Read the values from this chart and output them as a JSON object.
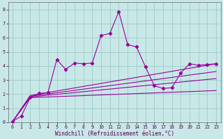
{
  "xlabel": "Windchill (Refroidissement éolien,°C)",
  "bg_color": "#c8e8e8",
  "grid_color": "#a0c8c8",
  "line_color": "#990099",
  "xlim": [
    -0.5,
    23.5
  ],
  "ylim": [
    0,
    8.5
  ],
  "xticks": [
    0,
    1,
    2,
    3,
    4,
    5,
    6,
    7,
    8,
    9,
    10,
    11,
    12,
    13,
    14,
    15,
    16,
    17,
    18,
    19,
    20,
    21,
    22,
    23
  ],
  "yticks": [
    0,
    1,
    2,
    3,
    4,
    5,
    6,
    7,
    8
  ],
  "series1_x": [
    0,
    1,
    2,
    3,
    4,
    5,
    6,
    7,
    8,
    9,
    10,
    11,
    12,
    13,
    14,
    15,
    16,
    17,
    18,
    19,
    20,
    21,
    22,
    23
  ],
  "series1_y": [
    0.05,
    0.45,
    1.75,
    2.05,
    2.1,
    4.45,
    3.75,
    4.2,
    4.15,
    4.2,
    6.15,
    6.3,
    7.85,
    5.5,
    5.35,
    3.95,
    2.6,
    2.4,
    2.45,
    3.5,
    4.15,
    4.05,
    4.1,
    4.15
  ],
  "series2_x": [
    0,
    2,
    23
  ],
  "series2_y": [
    0.05,
    1.9,
    4.15
  ],
  "series3_x": [
    0,
    2,
    23
  ],
  "series3_y": [
    0.05,
    1.85,
    3.6
  ],
  "series4_x": [
    0,
    2,
    23
  ],
  "series4_y": [
    0.05,
    1.8,
    3.1
  ],
  "series5_x": [
    0,
    2,
    23
  ],
  "series5_y": [
    0.05,
    1.75,
    2.25
  ]
}
